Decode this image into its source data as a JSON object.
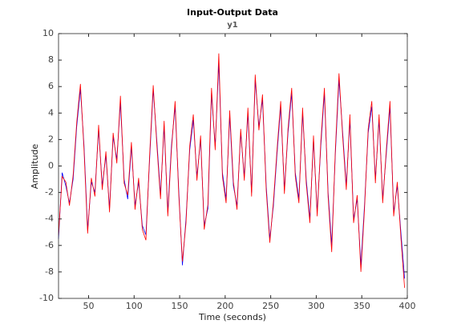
{
  "chart_data": {
    "type": "line",
    "title": "Input-Output Data",
    "subtitle": "y1",
    "x_label": "Time (seconds)",
    "y_label": "Amplitude",
    "x": [
      17,
      21,
      25,
      29,
      33,
      37,
      41,
      45,
      49,
      53,
      57,
      61,
      65,
      69,
      73,
      77,
      81,
      85,
      89,
      93,
      97,
      101,
      105,
      109,
      113,
      117,
      121,
      125,
      129,
      133,
      137,
      141,
      145,
      149,
      153,
      157,
      161,
      165,
      169,
      173,
      177,
      181,
      185,
      189,
      193,
      197,
      201,
      205,
      209,
      213,
      217,
      221,
      225,
      229,
      233,
      237,
      241,
      245,
      249,
      253,
      257,
      261,
      265,
      269,
      273,
      277,
      281,
      285,
      289,
      293,
      297,
      301,
      305,
      309,
      313,
      317,
      321,
      325,
      329,
      333,
      337,
      341,
      345,
      349,
      353,
      357,
      361,
      365,
      369,
      373,
      377,
      381,
      385,
      389,
      393,
      397
    ],
    "series": [
      {
        "color": "#0000ff",
        "values": [
          -5.5,
          -0.5,
          -1.5,
          -2.8,
          -1.0,
          3.0,
          5.8,
          1.5,
          -4.8,
          -1.2,
          -2.0,
          2.8,
          -1.5,
          0.8,
          -3.2,
          2.2,
          0.5,
          4.8,
          -1.0,
          -2.5,
          1.5,
          -3.0,
          -1.2,
          -4.5,
          -5.2,
          0.5,
          5.8,
          1.8,
          -2.2,
          3.0,
          -3.5,
          1.5,
          4.5,
          -1.8,
          -7.5,
          -4.0,
          1.2,
          3.5,
          -0.8,
          2.0,
          -4.5,
          -3.2,
          5.5,
          1.5,
          7.8,
          -0.5,
          -2.5,
          3.8,
          -1.5,
          -3.0,
          2.5,
          -0.8,
          4.0,
          -2.0,
          6.5,
          3.0,
          5.0,
          -1.5,
          -5.5,
          -3.0,
          1.0,
          4.5,
          -1.8,
          2.5,
          5.5,
          -0.5,
          -2.5,
          4.0,
          -1.0,
          -4.0,
          2.0,
          -3.5,
          1.5,
          5.5,
          -2.0,
          -6.0,
          1.0,
          6.5,
          2.5,
          -1.5,
          3.5,
          -4.0,
          -2.5,
          -7.5,
          -3.0,
          2.5,
          4.5,
          -1.0,
          3.5,
          -2.5,
          1.0,
          4.5,
          -3.5,
          -1.5,
          -5.0,
          -8.5
        ]
      },
      {
        "color": "#ff0000",
        "values": [
          -5.2,
          -0.8,
          -1.2,
          -3.0,
          -0.7,
          3.3,
          6.2,
          1.2,
          -5.1,
          -0.9,
          -2.3,
          3.1,
          -1.8,
          1.1,
          -3.5,
          2.5,
          0.2,
          5.3,
          -1.3,
          -2.2,
          1.8,
          -3.3,
          -0.9,
          -4.8,
          -5.6,
          0.8,
          6.1,
          1.5,
          -2.5,
          3.4,
          -3.8,
          1.2,
          4.9,
          -2.1,
          -7.2,
          -4.3,
          1.5,
          3.9,
          -1.1,
          2.3,
          -4.8,
          -2.9,
          5.9,
          1.2,
          8.5,
          -0.8,
          -2.8,
          4.2,
          -1.2,
          -3.3,
          2.8,
          -1.1,
          4.4,
          -2.3,
          6.9,
          2.7,
          5.4,
          -1.8,
          -5.8,
          -2.7,
          1.3,
          4.9,
          -2.1,
          2.8,
          5.9,
          -0.8,
          -2.8,
          4.4,
          -1.3,
          -4.3,
          2.3,
          -3.8,
          1.8,
          5.9,
          -2.3,
          -6.5,
          1.3,
          7.0,
          2.2,
          -1.8,
          3.9,
          -4.3,
          -2.2,
          -8.0,
          -3.3,
          2.8,
          4.9,
          -1.3,
          3.9,
          -2.8,
          1.3,
          4.9,
          -3.8,
          -1.2,
          -5.4,
          -9.2
        ]
      }
    ],
    "xlim": [
      17,
      400
    ],
    "xticks": [
      50,
      100,
      150,
      200,
      250,
      300,
      350,
      400
    ],
    "ylim": [
      -10,
      10
    ],
    "yticks": [
      -10,
      -8,
      -6,
      -4,
      -2,
      0,
      2,
      4,
      6,
      8,
      10
    ],
    "grid": false
  }
}
